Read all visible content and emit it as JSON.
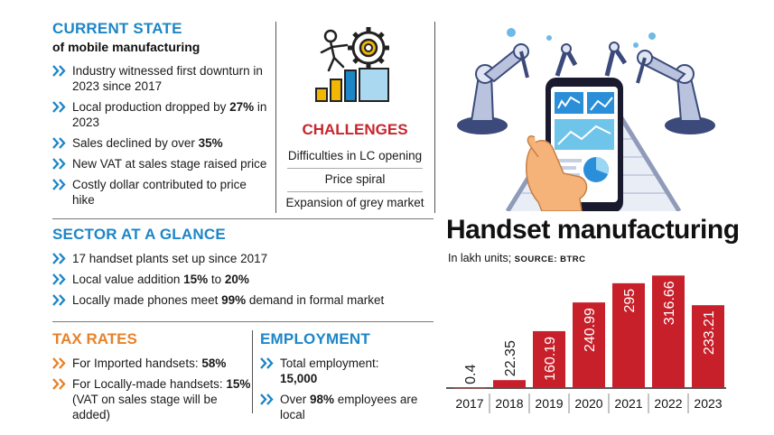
{
  "current_state": {
    "title": "CURRENT STATE",
    "subtitle": "of mobile manufacturing",
    "items": [
      [
        "Industry witnessed first downturn in 2023 since 2017",
        ""
      ],
      [
        "Local production dropped by ",
        "27%",
        " in 2023"
      ],
      [
        "Sales declined by over ",
        "35%",
        ""
      ],
      [
        "New VAT at sales stage raised price",
        "",
        ""
      ],
      [
        "Costly dollar contributed to price hike",
        "",
        ""
      ]
    ]
  },
  "challenges": {
    "title": "CHALLENGES",
    "items": [
      "Difficulties in LC opening",
      "Price spiral",
      "Expansion of grey market"
    ]
  },
  "sector": {
    "title": "SECTOR AT A GLANCE",
    "items": [
      [
        "17 handset plants set up since 2017",
        "",
        ""
      ],
      [
        "Local value addition ",
        "15%",
        " to ",
        "20%"
      ],
      [
        "Locally made phones meet ",
        "99%",
        " demand in formal market"
      ]
    ]
  },
  "tax": {
    "title": "TAX RATES",
    "imported_pre": "For Imported handsets: ",
    "imported_val": "58%",
    "local_pre": "For Locally-made handsets: ",
    "local_val": "15%",
    "local_note": "(VAT on sales stage will be added)"
  },
  "employment": {
    "title": "EMPLOYMENT",
    "total_pre": "Total employment:",
    "total_val": "15,000",
    "local_pre": "Over ",
    "local_val": "98%",
    "local_post": " employees are local"
  },
  "colors": {
    "blue": "#1d86c7",
    "orange": "#e8812a",
    "red": "#c6262e",
    "bar": "#c8202a"
  },
  "icons": [
    "climbing-person-gear-icon",
    "robot-arm-smartphone-illustration"
  ],
  "chart_data": {
    "type": "bar",
    "title": "Handset manufacturing",
    "subtitle": "In lakh units;",
    "source": "SOURCE: BTRC",
    "categories": [
      "2017",
      "2018",
      "2019",
      "2020",
      "2021",
      "2022",
      "2023"
    ],
    "values": [
      0.4,
      22.35,
      160.19,
      240.99,
      295,
      316.66,
      233.21
    ],
    "labels": [
      "0.4",
      "22.35",
      "160.19",
      "240.99",
      "295",
      "316.66",
      "233.21"
    ],
    "ylim": [
      0,
      320
    ]
  }
}
